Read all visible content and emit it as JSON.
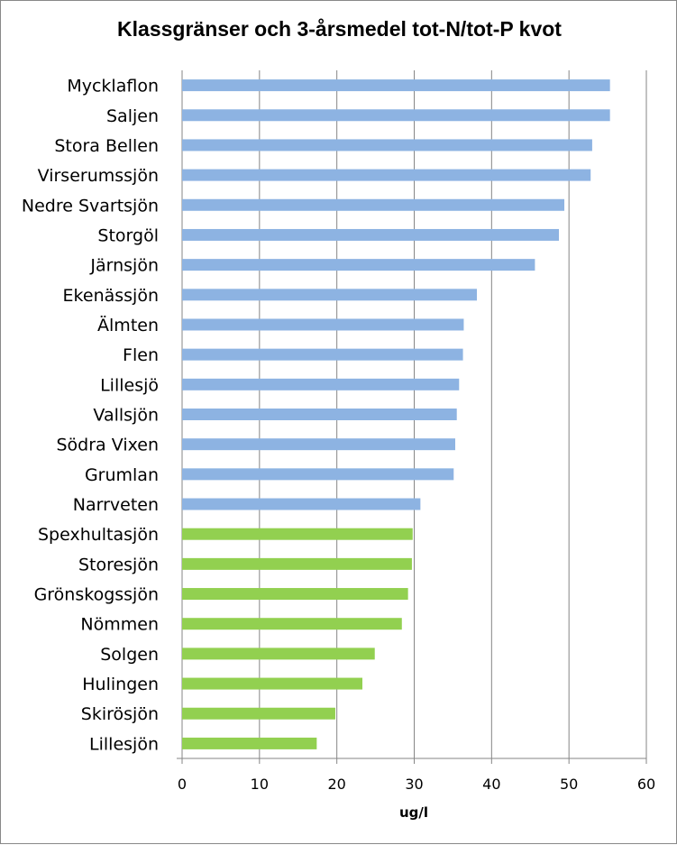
{
  "chart_data": {
    "type": "bar",
    "orientation": "horizontal",
    "title": "Klassgränser och 3-årsmedel tot-N/tot-P kvot",
    "xlabel": "ug/l",
    "ylabel": "",
    "xlim": [
      0,
      60
    ],
    "xticks": [
      0,
      10,
      20,
      30,
      40,
      50,
      60
    ],
    "grid": true,
    "legend": "none",
    "categories": [
      "Mycklaflon",
      "Saljen",
      "Stora Bellen",
      "Virserumssjön",
      "Nedre Svartsjön",
      "Storgöl",
      "Järnsjön",
      "Ekenässjön",
      "Älmten",
      "Flen",
      "Lillesjö",
      "Vallsjön",
      "Södra Vixen",
      "Grumlan",
      "Narrveten",
      "Spexhultasjön",
      "Storesjön",
      "Grönskogssjön",
      "Nömmen",
      "Solgen",
      "Hulingen",
      "Skirösjön",
      "Lillesjön"
    ],
    "values": [
      55.3,
      55.3,
      53.0,
      52.8,
      49.4,
      48.7,
      45.6,
      38.1,
      36.4,
      36.3,
      35.8,
      35.5,
      35.3,
      35.1,
      30.8,
      29.8,
      29.7,
      29.2,
      28.4,
      24.9,
      23.3,
      19.8,
      17.4
    ],
    "colors": {
      "blue": "#8db3e2",
      "green": "#92d050",
      "grid": "#868686"
    },
    "bar_color_groups": [
      "blue",
      "blue",
      "blue",
      "blue",
      "blue",
      "blue",
      "blue",
      "blue",
      "blue",
      "blue",
      "blue",
      "blue",
      "blue",
      "blue",
      "blue",
      "green",
      "green",
      "green",
      "green",
      "green",
      "green",
      "green",
      "green"
    ]
  }
}
